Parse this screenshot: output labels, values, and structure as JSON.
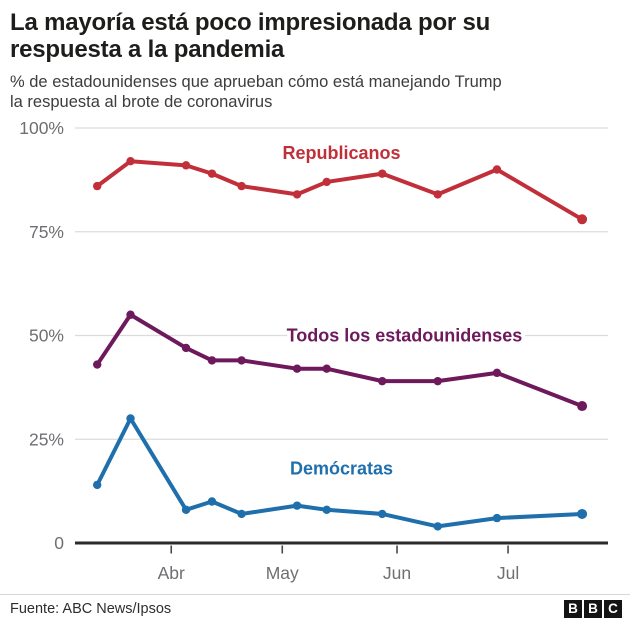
{
  "header": {
    "title_lines": [
      "La mayoría está poco impresionada por su",
      "respuesta a la pandemia"
    ],
    "subtitle_lines": [
      "% de estadounidenses que aprueban cómo está manejando Trump",
      "la respuesta al brote de coronavirus"
    ]
  },
  "footer": {
    "source": "Fuente: ABC News/Ipsos",
    "logo_letters": [
      "B",
      "B",
      "C"
    ]
  },
  "chart_data": {
    "type": "line",
    "title": "La mayoría está poco impresionada por su respuesta a la pandemia",
    "subtitle": "% de estadounidenses que aprueban cómo está manejando Trump la respuesta al brote de coronavirus",
    "x_unit": "days since 1 March 2020 (poll dates, approx.)",
    "x_domain": [
      5,
      149
    ],
    "ylim": [
      0,
      100
    ],
    "grid": true,
    "legend_position": "inline-labels",
    "y_ticks": [
      {
        "value": 100,
        "label": "100%"
      },
      {
        "value": 75,
        "label": "75%"
      },
      {
        "value": 50,
        "label": "50%"
      },
      {
        "value": 25,
        "label": "25%"
      },
      {
        "value": 0,
        "label": "0"
      }
    ],
    "x_ticks": [
      {
        "day": 31,
        "label": "Abr"
      },
      {
        "day": 61,
        "label": "May"
      },
      {
        "day": 92,
        "label": "Jun"
      },
      {
        "day": 122,
        "label": "Jul"
      }
    ],
    "x_days": [
      11,
      20,
      35,
      42,
      50,
      65,
      73,
      88,
      103,
      119,
      142
    ],
    "series": [
      {
        "name": "Republicanos",
        "color": "#c1303a",
        "values": [
          86,
          92,
          91,
          89,
          86,
          84,
          87,
          89,
          84,
          90,
          78
        ],
        "label": {
          "day": 77,
          "value": 94
        }
      },
      {
        "name": "Todos los estadounidenses",
        "color": "#6e195c",
        "values": [
          43,
          55,
          47,
          44,
          44,
          42,
          42,
          39,
          39,
          41,
          33
        ],
        "label": {
          "day": 94,
          "value": 50
        }
      },
      {
        "name": "Demócratas",
        "color": "#1f6fac",
        "values": [
          14,
          30,
          8,
          10,
          7,
          9,
          8,
          7,
          4,
          6,
          7
        ],
        "label": {
          "day": 77,
          "value": 18
        }
      }
    ],
    "grid_color": "#dcdcdc",
    "axis_color": "#2b2b2b",
    "tick_color": "#4a4a4a",
    "tick_label_color": "#6f6f73"
  }
}
